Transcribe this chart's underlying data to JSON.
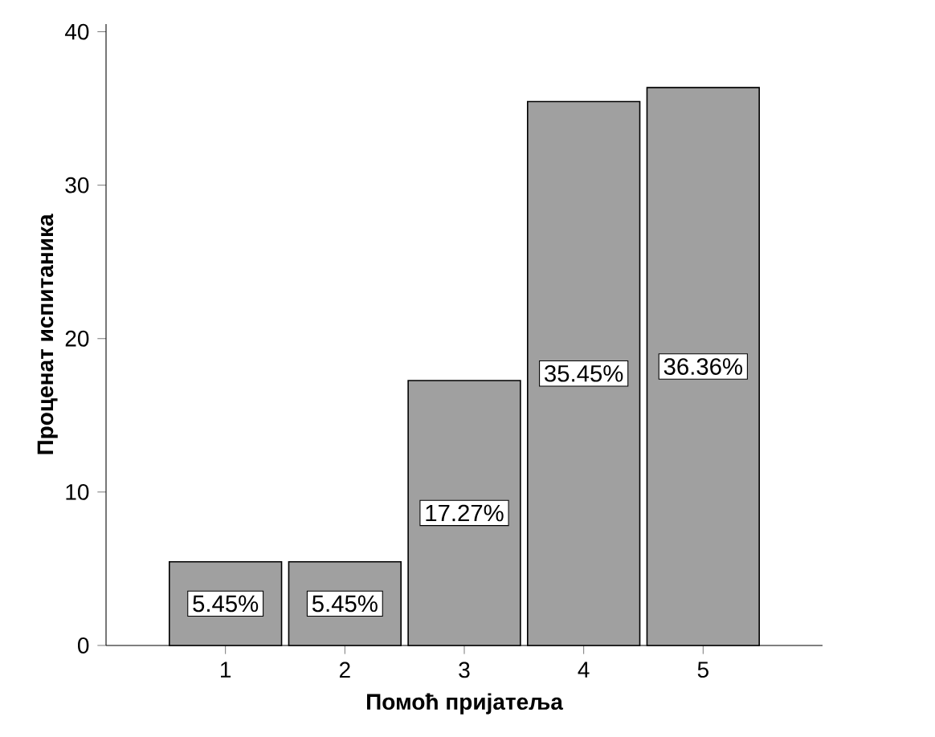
{
  "chart_data": {
    "type": "bar",
    "xlabel": "Помоћ пријатеља",
    "ylabel": "Проценат испитаника",
    "categories": [
      "1",
      "2",
      "3",
      "4",
      "5"
    ],
    "values": [
      5.45,
      5.45,
      17.27,
      35.45,
      36.36
    ],
    "value_labels": [
      "5.45%",
      "5.45%",
      "17.27%",
      "35.45%",
      "36.36%"
    ],
    "color": "#a0a0a0",
    "ylim": [
      0,
      40.5
    ],
    "yticks": [
      0,
      10,
      20,
      30,
      40
    ],
    "grid": false
  }
}
